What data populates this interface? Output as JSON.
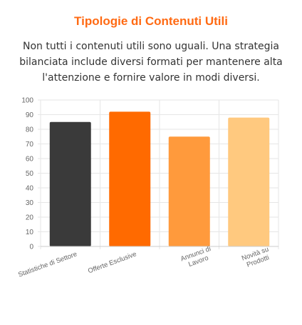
{
  "header": {
    "title": "Tipologie di Contenuti Utili",
    "description": "Non tutti i contenuti utili sono uguali. Una strategia bilanciata include diversi formati per mantenere alta l'attenzione e fornire valore in modi diversi."
  },
  "chart_data": {
    "type": "bar",
    "categories": [
      [
        "Statistiche di Settore"
      ],
      [
        "Offerte Esclusive"
      ],
      [
        "Annunci di",
        "Lavoro"
      ],
      [
        "Novità su",
        "Prodotti"
      ]
    ],
    "values": [
      85,
      92,
      75,
      88
    ],
    "colors": [
      "#3A3A3A",
      "#FF6A00",
      "#FF9A3C",
      "#FFC97F"
    ],
    "ylim": [
      0,
      100
    ],
    "yticks": [
      0,
      10,
      20,
      30,
      40,
      50,
      60,
      70,
      80,
      90,
      100
    ],
    "grid": true,
    "legend": "none"
  }
}
